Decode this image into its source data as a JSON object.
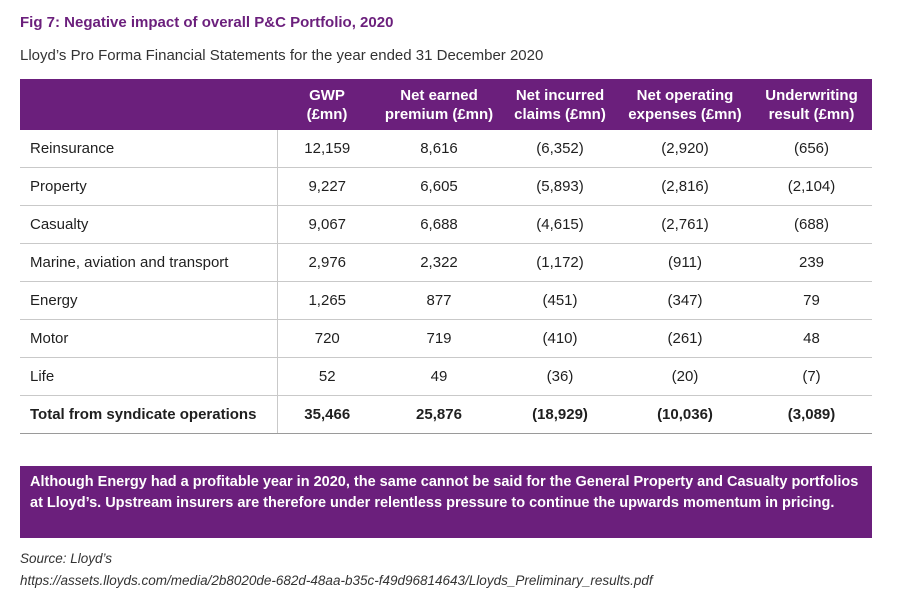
{
  "figure": {
    "title": "Fig 7: Negative impact of overall P&C Portfolio, 2020",
    "subtitle": "Lloyd’s Pro Forma Financial Statements for the year ended 31 December 2020"
  },
  "table": {
    "headers": [
      "",
      "GWP\n(£mn)",
      "Net earned\npremium (£mn)",
      "Net incurred\nclaims (£mn)",
      "Net operating\nexpenses (£mn)",
      "Underwriting\nresult (£mn)"
    ],
    "header_lines": [
      [
        "",
        ""
      ],
      [
        "GWP",
        "(£mn)"
      ],
      [
        "Net earned",
        "premium (£mn)"
      ],
      [
        "Net incurred",
        "claims (£mn)"
      ],
      [
        "Net operating",
        "expenses (£mn)"
      ],
      [
        "Underwriting",
        "result (£mn)"
      ]
    ],
    "rows": [
      [
        "Reinsurance",
        "12,159",
        "8,616",
        "(6,352)",
        "(2,920)",
        "(656)"
      ],
      [
        "Property",
        "9,227",
        "6,605",
        "(5,893)",
        "(2,816)",
        "(2,104)"
      ],
      [
        "Casualty",
        "9,067",
        "6,688",
        "(4,615)",
        "(2,761)",
        "(688)"
      ],
      [
        "Marine, aviation and transport",
        "2,976",
        "2,322",
        "(1,172)",
        "(911)",
        "239"
      ],
      [
        "Energy",
        "1,265",
        "877",
        "(451)",
        "(347)",
        "79"
      ],
      [
        "Motor",
        "720",
        "719",
        "(410)",
        "(261)",
        "48"
      ],
      [
        "Life",
        "52",
        "49",
        "(36)",
        "(20)",
        "(7)"
      ],
      [
        "Total from syndicate operations",
        "35,466",
        "25,876",
        "(18,929)",
        "(10,036)",
        "(3,089)"
      ]
    ]
  },
  "callout": {
    "text": "Although Energy had a profitable year in 2020, the same cannot be said for the General Property and Casualty portfolios at Lloyd’s. Upstream insurers are therefore under relentless pressure to continue the upwards momentum in pricing."
  },
  "source": {
    "label": "Source: Lloyd’s",
    "url": "https://assets.lloyds.com/media/2b8020de-682d-48aa-b35c-f49d96814643/Lloyds_Preliminary_results.pdf"
  },
  "colors": {
    "accent": "#6b1f7c",
    "header_text": "#ffffff",
    "row_divider": "#c9c9c9"
  }
}
